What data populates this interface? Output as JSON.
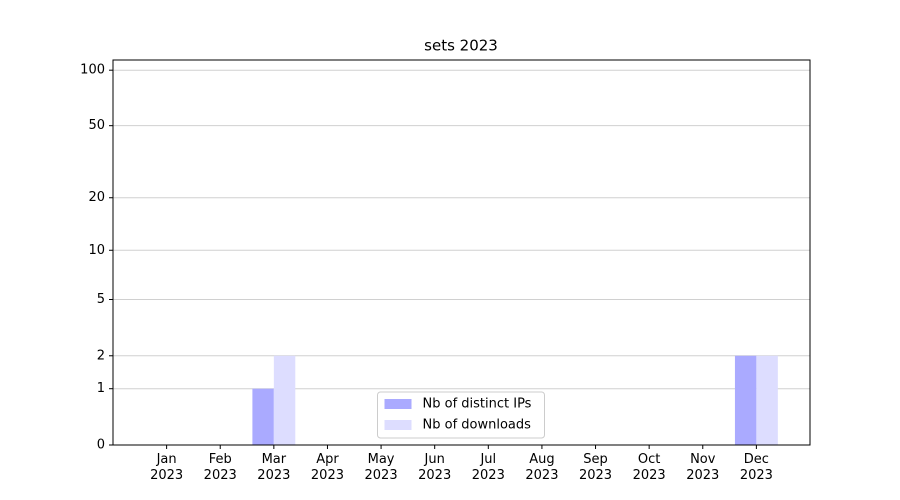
{
  "chart_data": {
    "type": "bar",
    "title": "sets 2023",
    "categories": [
      "Jan 2023",
      "Feb 2023",
      "Mar 2023",
      "Apr 2023",
      "May 2023",
      "Jun 2023",
      "Jul 2023",
      "Aug 2023",
      "Sep 2023",
      "Oct 2023",
      "Nov 2023",
      "Dec 2023"
    ],
    "series": [
      {
        "name": "Nb of distinct IPs",
        "color": "#aaaaff",
        "values": [
          0,
          0,
          1,
          0,
          0,
          0,
          0,
          0,
          0,
          0,
          0,
          2
        ]
      },
      {
        "name": "Nb of downloads",
        "color": "#ddddff",
        "values": [
          0,
          0,
          2,
          0,
          0,
          0,
          0,
          0,
          0,
          0,
          0,
          2
        ]
      }
    ],
    "yscale": "log1p",
    "ylim": [
      0,
      113.5
    ],
    "yticks": [
      0,
      1,
      2,
      5,
      10,
      20,
      50,
      100
    ],
    "grid": true,
    "legend": "lower center"
  }
}
